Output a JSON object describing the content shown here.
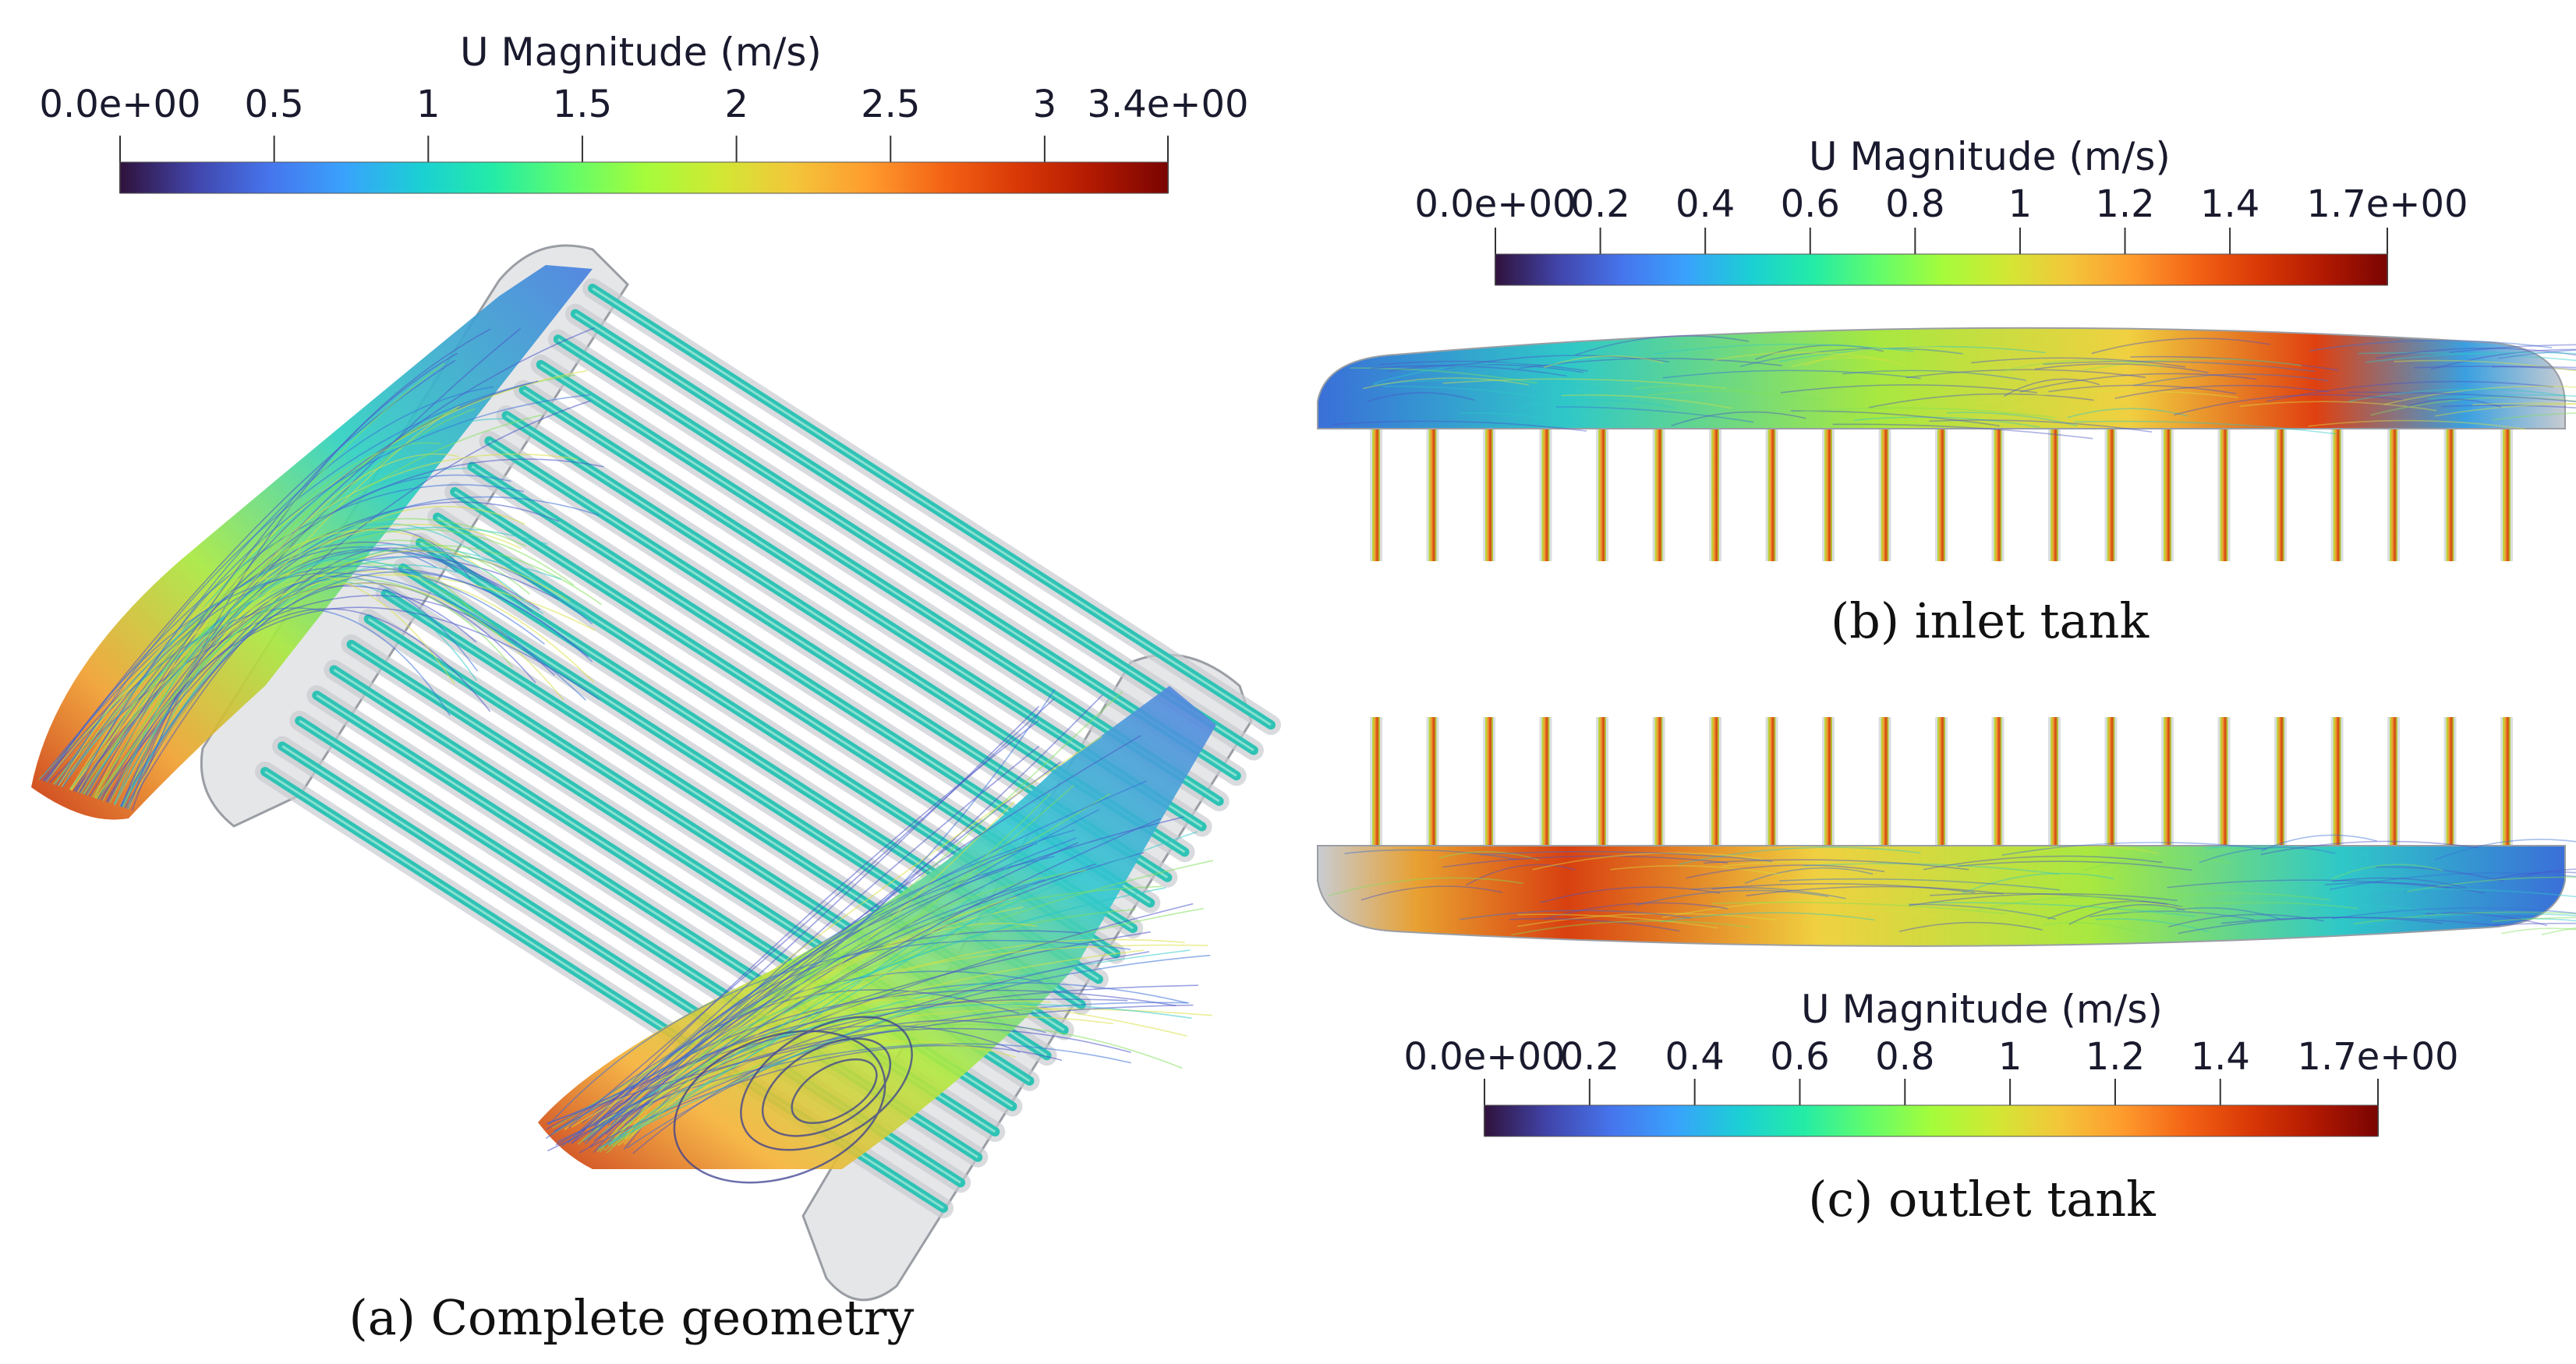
{
  "figure": {
    "panel_a": {
      "colorbar": {
        "title": "U Magnitude (m/s)",
        "min_value": 0.0,
        "max_value": 3.4,
        "ticks": [
          {
            "value": 0.0,
            "label": "0.0e+00"
          },
          {
            "value": 0.5,
            "label": "0.5"
          },
          {
            "value": 1.0,
            "label": "1"
          },
          {
            "value": 1.5,
            "label": "1.5"
          },
          {
            "value": 2.0,
            "label": "2"
          },
          {
            "value": 2.5,
            "label": "2.5"
          },
          {
            "value": 3.0,
            "label": "3"
          },
          {
            "value": 3.4,
            "label": "3.4e+00"
          }
        ]
      },
      "tube_count": 20,
      "caption": "(a)  Complete geometry"
    },
    "panel_b": {
      "colorbar": {
        "title": "U Magnitude (m/s)",
        "min_value": 0.0,
        "max_value": 1.7,
        "ticks": [
          {
            "value": 0.0,
            "label": "0.0e+00"
          },
          {
            "value": 0.2,
            "label": "0.2"
          },
          {
            "value": 0.4,
            "label": "0.4"
          },
          {
            "value": 0.6,
            "label": "0.6"
          },
          {
            "value": 0.8,
            "label": "0.8"
          },
          {
            "value": 1.0,
            "label": "1"
          },
          {
            "value": 1.2,
            "label": "1.2"
          },
          {
            "value": 1.4,
            "label": "1.4"
          },
          {
            "value": 1.7,
            "label": "1.7e+00"
          }
        ]
      },
      "tube_count": 21,
      "caption": "(b)  inlet tank"
    },
    "panel_c": {
      "colorbar": {
        "title": "U Magnitude (m/s)",
        "min_value": 0.0,
        "max_value": 1.7,
        "ticks": [
          {
            "value": 0.0,
            "label": "0.0e+00"
          },
          {
            "value": 0.2,
            "label": "0.2"
          },
          {
            "value": 0.4,
            "label": "0.4"
          },
          {
            "value": 0.6,
            "label": "0.6"
          },
          {
            "value": 0.8,
            "label": "0.8"
          },
          {
            "value": 1.0,
            "label": "1"
          },
          {
            "value": 1.2,
            "label": "1.2"
          },
          {
            "value": 1.4,
            "label": "1.4"
          },
          {
            "value": 1.7,
            "label": "1.7e+00"
          }
        ]
      },
      "tube_count": 21,
      "caption": "(c)  outlet tank"
    },
    "colormap": [
      "#30123b",
      "#4145ab",
      "#4675ed",
      "#39a2fc",
      "#1bcfd4",
      "#24eca6",
      "#61fc6c",
      "#a4fc3b",
      "#d1e834",
      "#f3c63a",
      "#fe9b2d",
      "#f36315",
      "#d93806",
      "#b11901",
      "#7a0402"
    ],
    "colors": {
      "background": "#ffffff",
      "housing": "#cfd2d6",
      "housing_edge": "#9a9ea4",
      "streamline_slow": "#4a55c8",
      "text": "#111111"
    }
  }
}
